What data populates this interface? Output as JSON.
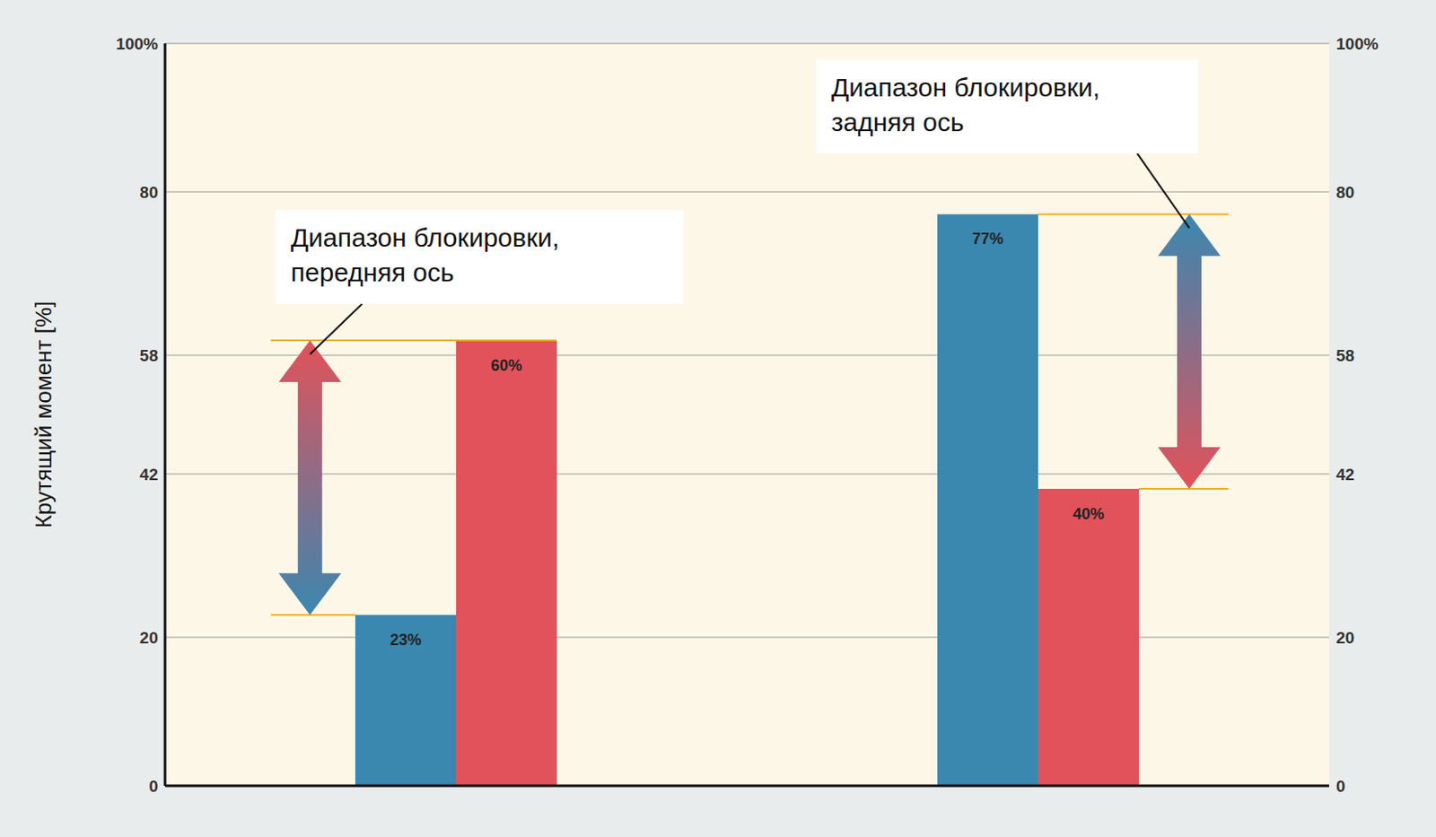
{
  "chart_data": {
    "type": "bar",
    "y_label": "Крутящий момент [%]",
    "categories": [
      null,
      null
    ],
    "series": [
      {
        "color": "#3a87b0",
        "values": [
          23,
          77
        ],
        "value_labels": [
          "23%",
          "77%"
        ]
      },
      {
        "color": "#e2525a",
        "values": [
          60,
          40
        ],
        "value_labels": [
          "60%",
          "40%"
        ]
      }
    ],
    "ylim": [
      0,
      100
    ],
    "yticks": [
      0,
      20,
      42,
      58,
      80,
      {
        "value": 100,
        "label": "100%"
      }
    ],
    "y2lim": [
      0,
      100
    ],
    "y2ticks": [
      0,
      20,
      42,
      58,
      80,
      {
        "value": 100,
        "label": "100%"
      }
    ],
    "grid": true,
    "data_labels": true,
    "annotations": [
      "Диапазон блокировки, передняя ось",
      "Диапазон блокировки, задняя ось"
    ]
  }
}
